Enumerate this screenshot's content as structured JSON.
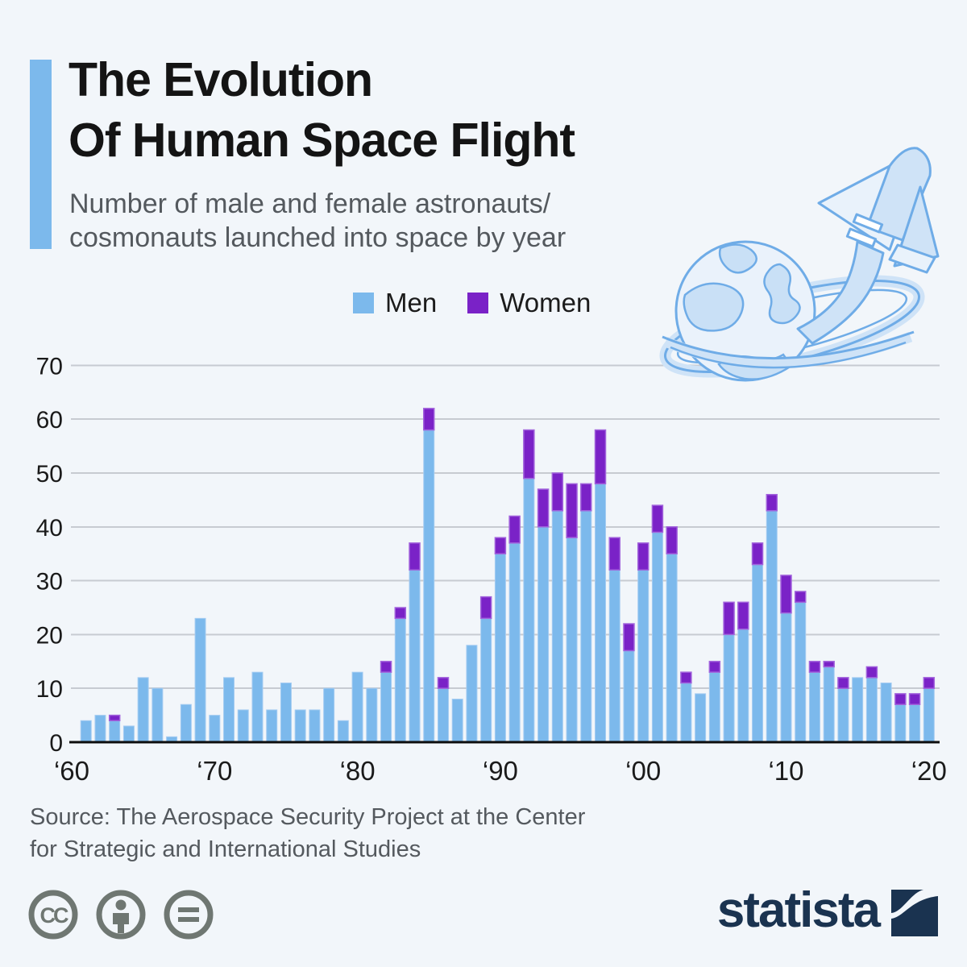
{
  "header": {
    "title_line1": "The Evolution",
    "title_line2": "Of Human Space Flight",
    "subtitle_line1": "Number of male and female astronauts/",
    "subtitle_line2": "cosmonauts launched into space by year"
  },
  "legend": {
    "men_label": "Men",
    "women_label": "Women"
  },
  "colors": {
    "background": "#F2F6FA",
    "accent_bar": "#7CB9EC",
    "men": "#7CB9EC",
    "women": "#7A22C7",
    "women_border": "#A263DC",
    "grid": "#C7CBD1",
    "axis": "#0D0D0D",
    "title_text": "#141414",
    "subtitle_text": "#54595E",
    "cc_gray": "#6F7772",
    "logo_navy": "#1A3350",
    "illustration_stroke": "#6FACE7",
    "illustration_fill": "#CFE3F7"
  },
  "chart_data": {
    "type": "bar",
    "stacked": true,
    "title": "The Evolution Of Human Space Flight",
    "xlabel": "",
    "ylabel": "",
    "ylim": [
      0,
      70
    ],
    "yticks": [
      0,
      10,
      20,
      30,
      40,
      50,
      60,
      70
    ],
    "grid": true,
    "legend_position": "top",
    "xtick_labels": [
      "‘60",
      "‘70",
      "‘80",
      "‘90",
      "‘00",
      "‘10",
      "‘20"
    ],
    "xtick_years": [
      1960,
      1970,
      1980,
      1990,
      2000,
      2010,
      2020
    ],
    "years": [
      1961,
      1962,
      1963,
      1964,
      1965,
      1966,
      1967,
      1968,
      1969,
      1970,
      1971,
      1972,
      1973,
      1974,
      1975,
      1976,
      1977,
      1978,
      1979,
      1980,
      1981,
      1982,
      1983,
      1984,
      1985,
      1986,
      1987,
      1988,
      1989,
      1990,
      1991,
      1992,
      1993,
      1994,
      1995,
      1996,
      1997,
      1998,
      1999,
      2000,
      2001,
      2002,
      2003,
      2004,
      2005,
      2006,
      2007,
      2008,
      2009,
      2010,
      2011,
      2012,
      2013,
      2014,
      2015,
      2016,
      2017,
      2018,
      2019,
      2020
    ],
    "series": [
      {
        "name": "Men",
        "values": [
          4,
          5,
          4,
          3,
          12,
          10,
          1,
          7,
          23,
          5,
          12,
          6,
          13,
          6,
          11,
          6,
          6,
          10,
          4,
          13,
          10,
          13,
          23,
          32,
          58,
          10,
          8,
          18,
          23,
          35,
          37,
          49,
          40,
          43,
          38,
          43,
          48,
          32,
          17,
          32,
          39,
          35,
          11,
          9,
          13,
          20,
          21,
          33,
          43,
          24,
          26,
          13,
          14,
          10,
          12,
          12,
          11,
          7,
          7,
          10
        ]
      },
      {
        "name": "Women",
        "values": [
          0,
          0,
          1,
          0,
          0,
          0,
          0,
          0,
          0,
          0,
          0,
          0,
          0,
          0,
          0,
          0,
          0,
          0,
          0,
          0,
          0,
          2,
          2,
          5,
          4,
          2,
          0,
          0,
          4,
          3,
          5,
          9,
          7,
          7,
          10,
          5,
          10,
          6,
          5,
          5,
          5,
          5,
          2,
          0,
          2,
          6,
          5,
          4,
          3,
          7,
          2,
          2,
          1,
          2,
          0,
          2,
          0,
          2,
          2,
          2
        ]
      }
    ]
  },
  "source": {
    "line1": "Source: The Aerospace Security Project at the Center",
    "line2": "for Strategic and International Studies"
  },
  "footer": {
    "brand": "statista",
    "cc_label": "CC"
  }
}
